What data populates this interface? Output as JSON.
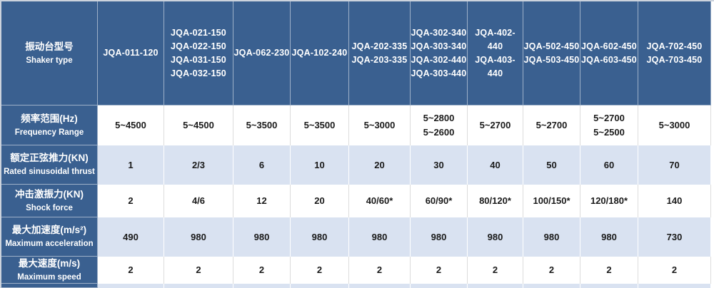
{
  "table": {
    "header": {
      "row_label": {
        "cn": "振动台型号",
        "en": "Shaker type"
      },
      "columns": [
        {
          "models": [
            "JQA-011-120"
          ]
        },
        {
          "models": [
            "JQA-021-150",
            "JQA-022-150",
            "JQA-031-150",
            "JQA-032-150"
          ]
        },
        {
          "models": [
            "JQA-062-230"
          ]
        },
        {
          "models": [
            "JQA-102-240"
          ]
        },
        {
          "models": [
            "JQA-202-335",
            "JQA-203-335"
          ]
        },
        {
          "models": [
            "JQA-302-340",
            "JQA-303-340",
            "JQA-302-440",
            "JQA-303-440"
          ]
        },
        {
          "models": [
            "JQA-402-440",
            "JQA-403-440"
          ]
        },
        {
          "models": [
            "JQA-502-450",
            "JQA-503-450"
          ]
        },
        {
          "models": [
            "JQA-602-450",
            "JQA-603-450"
          ]
        },
        {
          "models": [
            "JQA-702-450",
            "JQA-703-450"
          ]
        }
      ]
    },
    "rows": [
      {
        "label_cn": "频率范围(Hz)",
        "label_en": "Frequency Range",
        "values": [
          [
            "5~4500"
          ],
          [
            "5~4500"
          ],
          [
            "5~3500"
          ],
          [
            "5~3500"
          ],
          [
            "5~3000"
          ],
          [
            "5~2800",
            "5~2600"
          ],
          [
            "5~2700"
          ],
          [
            "5~2700"
          ],
          [
            "5~2700",
            "5~2500"
          ],
          [
            "5~3000"
          ]
        ]
      },
      {
        "label_cn": "额定正弦推力(KN)",
        "label_en": "Rated sinusoidal thrust",
        "values": [
          [
            "1"
          ],
          [
            "2/3"
          ],
          [
            "6"
          ],
          [
            "10"
          ],
          [
            "20"
          ],
          [
            "30"
          ],
          [
            "40"
          ],
          [
            "50"
          ],
          [
            "60"
          ],
          [
            "70"
          ]
        ]
      },
      {
        "label_cn": "冲击激振力(KN)",
        "label_en": "Shock force",
        "values": [
          [
            "2"
          ],
          [
            "4/6"
          ],
          [
            "12"
          ],
          [
            "20"
          ],
          [
            "40/60*"
          ],
          [
            "60/90*"
          ],
          [
            "80/120*"
          ],
          [
            "100/150*"
          ],
          [
            "120/180*"
          ],
          [
            "140"
          ]
        ]
      },
      {
        "label_cn": "最大加速度(m/s²)",
        "label_en": "Maximum acceleration",
        "values": [
          [
            "490"
          ],
          [
            "980"
          ],
          [
            "980"
          ],
          [
            "980"
          ],
          [
            "980"
          ],
          [
            "980"
          ],
          [
            "980"
          ],
          [
            "980"
          ],
          [
            "980"
          ],
          [
            "730"
          ]
        ]
      },
      {
        "label_cn": "最大速度(m/s)",
        "label_en": "Maximum speed",
        "values": [
          [
            "2"
          ],
          [
            "2"
          ],
          [
            "2"
          ],
          [
            "2"
          ],
          [
            "2"
          ],
          [
            "2"
          ],
          [
            "2"
          ],
          [
            "2"
          ],
          [
            "2"
          ],
          [
            "2"
          ]
        ]
      }
    ],
    "colors": {
      "header_blue": "#3a6090",
      "light_blue": "#d9e2f1",
      "white_row": "#ffffff",
      "grid_on_white": "#dcdcdc",
      "grid_on_blue": "#ffffff",
      "grid_on_header": "rgba(255,255,255,0.5)",
      "value_text": "#1a1a1a",
      "header_text": "#ffffff",
      "outer_border": "#ccd3dd"
    }
  }
}
